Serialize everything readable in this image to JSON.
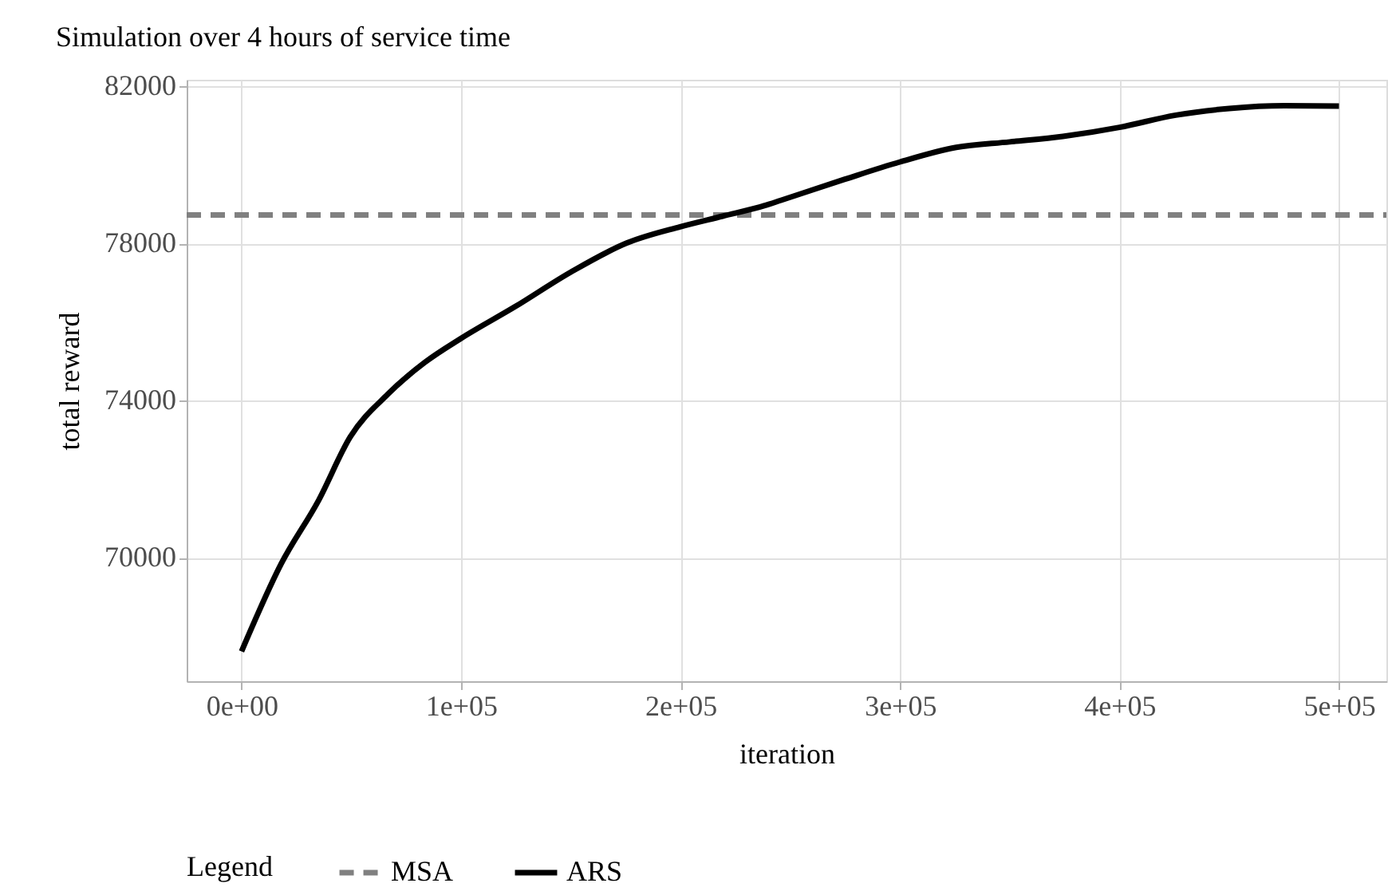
{
  "chart_data": {
    "type": "line",
    "title": "Simulation over 4 hours of service time",
    "xlabel": "iteration",
    "ylabel": "total reward",
    "legend_title": "Legend",
    "xlim": [
      -25000,
      521600
    ],
    "ylim": [
      66860,
      82160
    ],
    "xticks": [
      {
        "value": 0,
        "label": "0e+00"
      },
      {
        "value": 100000,
        "label": "1e+05"
      },
      {
        "value": 200000,
        "label": "2e+05"
      },
      {
        "value": 300000,
        "label": "3e+05"
      },
      {
        "value": 400000,
        "label": "4e+05"
      },
      {
        "value": 500000,
        "label": "5e+05"
      }
    ],
    "yticks": [
      70000,
      74000,
      78000,
      82000
    ],
    "grid": true,
    "legend": "bottom",
    "series": [
      {
        "name": "MSA",
        "color": "#808080",
        "line_style": "dashed",
        "x": [
          -25000,
          521600
        ],
        "values": [
          78720,
          78720
        ]
      },
      {
        "name": "ARS",
        "color": "#000000",
        "line_style": "solid",
        "x": [
          0,
          18000,
          35100,
          49600,
          66600,
          83500,
          100000,
          124700,
          150100,
          175600,
          199800,
          219200,
          238400,
          245600,
          274900,
          300000,
          325600,
          350000,
          374200,
          400000,
          425600,
          450000,
          475100,
          500000
        ],
        "values": [
          67620,
          69840,
          71460,
          73080,
          74160,
          74970,
          75580,
          76390,
          77270,
          78010,
          78420,
          78690,
          78960,
          79090,
          79630,
          80070,
          80440,
          80580,
          80720,
          80950,
          81260,
          81430,
          81500,
          81490
        ]
      }
    ]
  }
}
